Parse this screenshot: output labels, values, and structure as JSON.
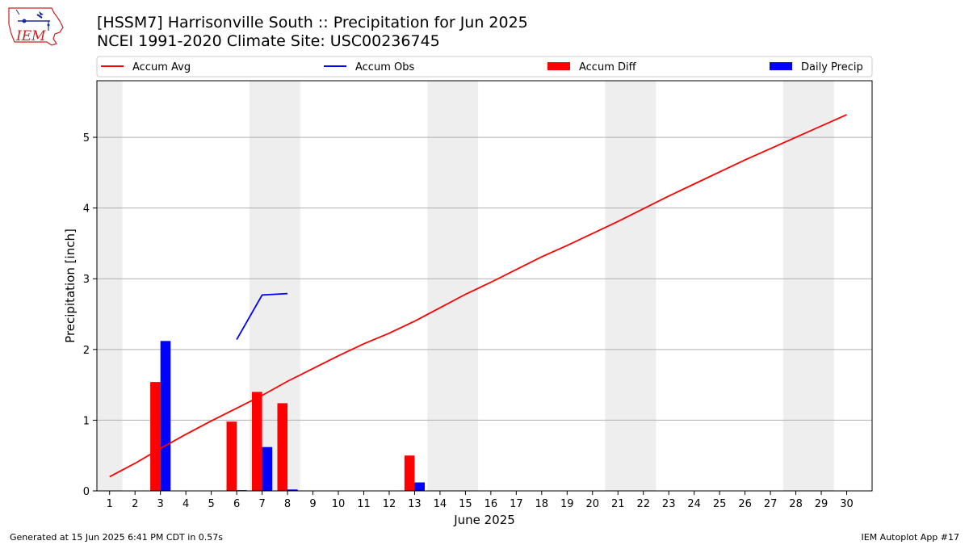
{
  "header": {
    "title_line1": "[HSSM7] Harrisonville South :: Precipitation for Jun 2025",
    "title_line2": "NCEI 1991-2020 Climate Site: USC00236745",
    "logo_text": "IEM"
  },
  "footer": {
    "generated": "Generated at 15 Jun 2025 6:41 PM CDT in 0.57s",
    "app": "IEM Autoplot App #17"
  },
  "colors": {
    "accum_avg": "#ff0000",
    "accum_obs": "#0000ff",
    "accum_diff": "#ff0000",
    "daily_precip": "#0000ff",
    "weekend_shade": "#eeeeee",
    "grid": "#b0b0b0"
  },
  "chart_data": {
    "type": "bar",
    "xlabel": "June 2025",
    "ylabel": "Precipitation [inch]",
    "xlim": [
      0.5,
      31
    ],
    "ylim": [
      0,
      5.8
    ],
    "x_ticks": [
      1,
      2,
      3,
      4,
      5,
      6,
      7,
      8,
      9,
      10,
      11,
      12,
      13,
      14,
      15,
      16,
      17,
      18,
      19,
      20,
      21,
      22,
      23,
      24,
      25,
      26,
      27,
      28,
      29,
      30
    ],
    "y_ticks": [
      0,
      1,
      2,
      3,
      4,
      5
    ],
    "grid": "horizontal",
    "legend_placement": "top",
    "legend": [
      "Accum Avg",
      "Accum Obs",
      "Accum Diff",
      "Daily Precip"
    ],
    "weekend_shading": [
      [
        0.5,
        1.5
      ],
      [
        6.5,
        8.5
      ],
      [
        13.5,
        15.5
      ],
      [
        20.5,
        22.5
      ],
      [
        27.5,
        29.5
      ]
    ],
    "series": [
      {
        "name": "Accum Avg",
        "kind": "line",
        "x": [
          1,
          2,
          3,
          4,
          5,
          6,
          7,
          8,
          9,
          10,
          11,
          12,
          13,
          14,
          15,
          16,
          17,
          18,
          19,
          20,
          21,
          22,
          23,
          24,
          25,
          26,
          27,
          28,
          29,
          30
        ],
        "values": [
          0.2,
          0.39,
          0.6,
          0.8,
          0.99,
          1.17,
          1.35,
          1.55,
          1.73,
          1.91,
          2.08,
          2.23,
          2.4,
          2.59,
          2.78,
          2.95,
          3.13,
          3.31,
          3.47,
          3.64,
          3.81,
          3.99,
          4.17,
          4.34,
          4.51,
          4.68,
          4.84,
          5.0,
          5.16,
          5.32
        ]
      },
      {
        "name": "Accum Obs",
        "kind": "line",
        "x": [
          6,
          7,
          8
        ],
        "values": [
          2.14,
          2.77,
          2.79
        ]
      },
      {
        "name": "Accum Diff",
        "kind": "bar",
        "x": [
          3,
          6,
          7,
          8,
          13
        ],
        "values": [
          1.54,
          0.98,
          1.4,
          1.24,
          0.5
        ]
      },
      {
        "name": "Daily Precip",
        "kind": "bar",
        "x": [
          3,
          6,
          7,
          8,
          13
        ],
        "values": [
          2.12,
          0.01,
          0.62,
          0.02,
          0.12
        ]
      }
    ]
  }
}
